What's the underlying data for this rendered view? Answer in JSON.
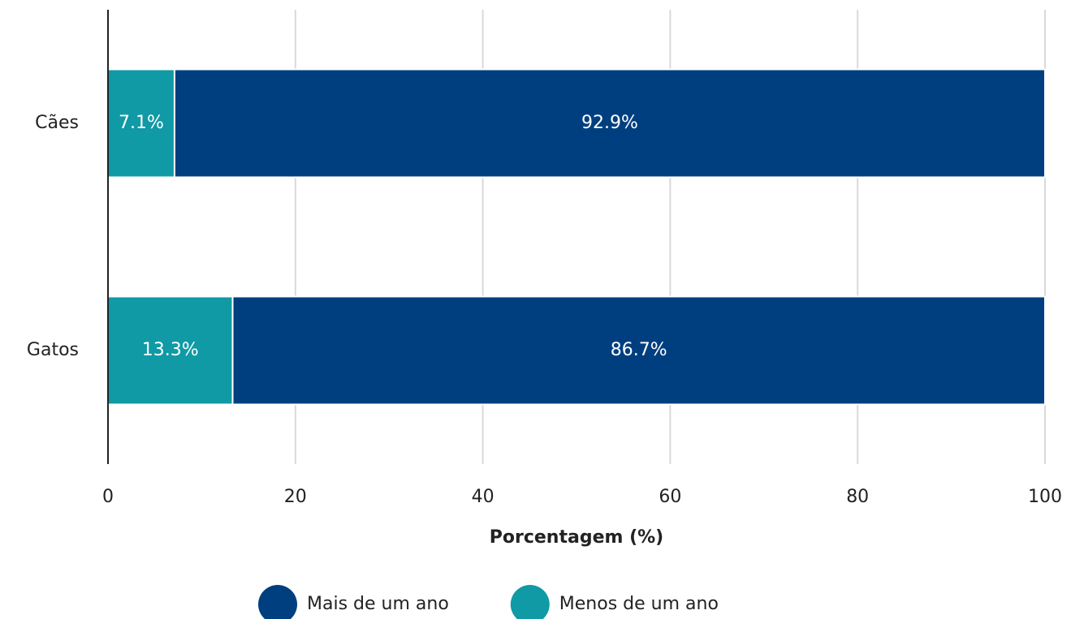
{
  "chart_data": {
    "type": "stacked_bar_horizontal",
    "categories": [
      "Cães",
      "Gatos"
    ],
    "series": [
      {
        "name": "Mais de um ano",
        "color": "#003f7f",
        "values": [
          92.9,
          86.7
        ],
        "value_labels": [
          "92.9%",
          "86.7%"
        ]
      },
      {
        "name": "Menos de um ano",
        "color": "#0f9aa5",
        "values": [
          7.1,
          13.3
        ],
        "value_labels": [
          "7.1%",
          "13.3%"
        ]
      }
    ],
    "xlabel": "Porcentagem (%)",
    "xlim": [
      0,
      100
    ],
    "xticks": [
      0,
      20,
      40,
      60,
      80,
      100
    ],
    "grid": true,
    "legend": "bottom"
  }
}
